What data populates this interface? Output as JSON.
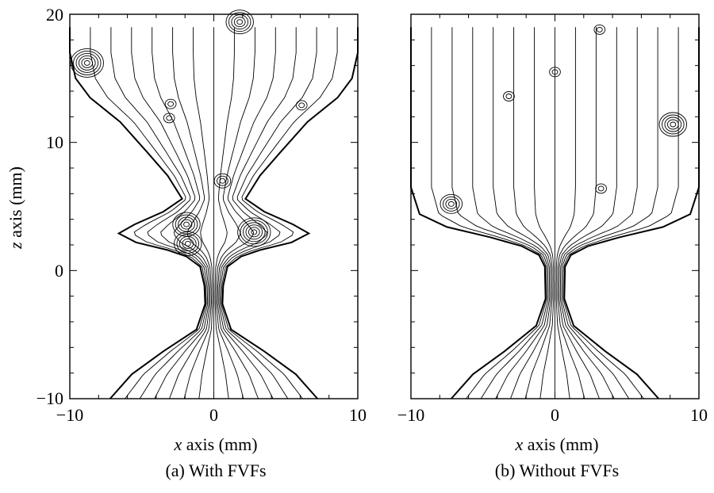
{
  "chart_data": [
    {
      "type": "contour",
      "caption": "(a) With FVFs",
      "xlabel_var": "x",
      "xlabel_rest": " axis (mm)",
      "ylabel_var": "z",
      "ylabel_rest": " axis (mm)",
      "xlim": [
        -10,
        10
      ],
      "ylim": [
        -10,
        20
      ],
      "xticks": [
        -10,
        0,
        10
      ],
      "yticks": [
        -10,
        0,
        10,
        20
      ],
      "xtick_labels": [
        "−10",
        "0",
        "10"
      ],
      "ytick_labels": [
        "−10",
        "0",
        "10",
        "20"
      ],
      "boundary_profile": [
        [
          -10,
          19
        ],
        [
          -10,
          17
        ],
        [
          -9.6,
          15
        ],
        [
          -8.6,
          13.5
        ],
        [
          -6.5,
          11.6
        ],
        [
          -4.6,
          9.2
        ],
        [
          -3.2,
          7.4
        ],
        [
          -2.2,
          5.6
        ],
        [
          -3.5,
          4.6
        ],
        [
          -5.5,
          3.6
        ],
        [
          -6.6,
          2.9
        ],
        [
          -5.4,
          2.2
        ],
        [
          -3.2,
          1.6
        ],
        [
          -1.9,
          1.1
        ],
        [
          -0.95,
          0.3
        ],
        [
          -0.65,
          -1.2
        ],
        [
          -0.6,
          -2.6
        ],
        [
          -1.2,
          -4.6
        ],
        [
          -3.5,
          -6.3
        ],
        [
          -5.7,
          -8.1
        ],
        [
          -7.2,
          -10
        ]
      ],
      "vortex_centers": [
        [
          -8.8,
          16.2
        ],
        [
          -3.1,
          11.9
        ],
        [
          -1.9,
          3.6
        ],
        [
          -1.8,
          2.1
        ],
        [
          0.6,
          7
        ],
        [
          2.8,
          3
        ],
        [
          1.8,
          19.4
        ],
        [
          6.1,
          12.9
        ],
        [
          -3,
          13
        ]
      ]
    },
    {
      "type": "contour",
      "caption": "(b) Without FVFs",
      "xlabel_var": "x",
      "xlabel_rest": " axis (mm)",
      "xlim": [
        -10,
        10
      ],
      "ylim": [
        -10,
        20
      ],
      "xticks": [
        -10,
        0,
        10
      ],
      "xtick_labels": [
        "−10",
        "0",
        "10"
      ],
      "boundary_profile": [
        [
          -10,
          19
        ],
        [
          -10,
          6.5
        ],
        [
          -9.4,
          4.4
        ],
        [
          -7.5,
          3.4
        ],
        [
          -4.5,
          2.6
        ],
        [
          -2.3,
          1.9
        ],
        [
          -1.1,
          1.2
        ],
        [
          -0.7,
          0.3
        ],
        [
          -0.65,
          -2.2
        ],
        [
          -1.3,
          -4.3
        ],
        [
          -3.5,
          -6.3
        ],
        [
          -5.7,
          -8.1
        ],
        [
          -7.2,
          -10
        ]
      ],
      "vortex_centers": [
        [
          -3.2,
          13.6
        ],
        [
          3.1,
          18.8
        ],
        [
          3.2,
          6.4
        ],
        [
          -7.2,
          5.2
        ],
        [
          8.2,
          11.4
        ],
        [
          0,
          15.5
        ]
      ]
    }
  ]
}
